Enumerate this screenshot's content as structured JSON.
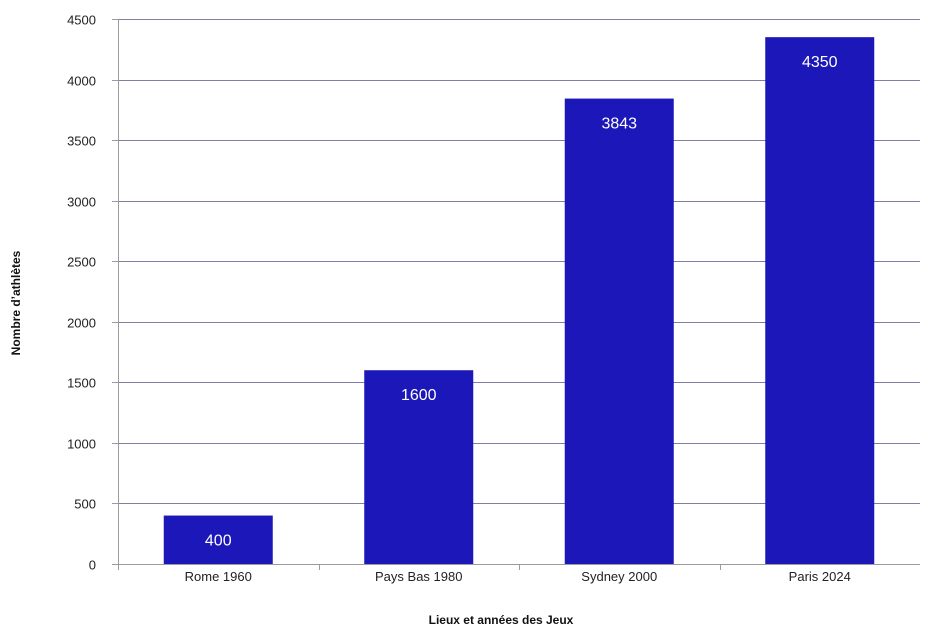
{
  "chart_data": {
    "type": "bar",
    "categories": [
      "Rome 1960",
      "Pays Bas 1980",
      "Sydney 2000",
      "Paris 2024"
    ],
    "values": [
      400,
      1600,
      3843,
      4350
    ],
    "data_labels": [
      "400",
      "1600",
      "3843",
      "4350"
    ],
    "xlabel": "Lieux et années des Jeux",
    "ylabel": "Nombre d’athlètes",
    "ylim": [
      0,
      4500
    ],
    "yticks": [
      0,
      500,
      1000,
      1500,
      2000,
      2500,
      3000,
      3500,
      4000,
      4500
    ],
    "grid": true,
    "legend": "none",
    "colors": {
      "bar": "#1c17b8",
      "grid": "#7f7fa6"
    }
  }
}
